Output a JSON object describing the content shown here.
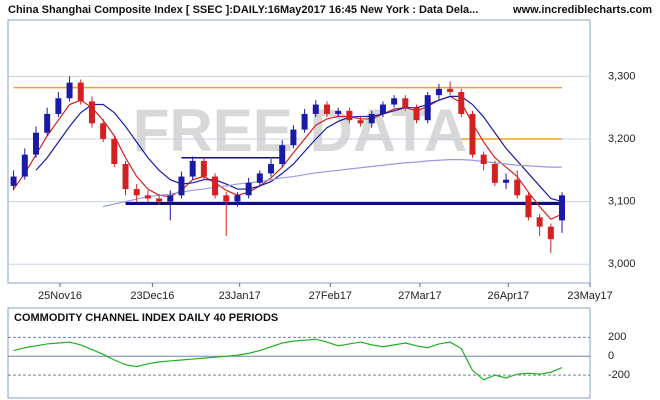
{
  "chart_data": [
    {
      "type": "candlestick",
      "title": "China Shanghai Composite Index [ SSEC ]:DAILY:16May2017 16:45 New York : Data Dela...",
      "source": "www.incrediblecharts.com",
      "watermark": "FREE DATA",
      "xlim": [
        -0.5,
        51.5
      ],
      "xticks": [
        {
          "value": 4.15,
          "label": "25Nov16"
        },
        {
          "value": 12.4,
          "label": "23Dec16"
        },
        {
          "value": 20.2,
          "label": "23Jan17"
        },
        {
          "value": 28.3,
          "label": "27Feb17"
        },
        {
          "value": 36.3,
          "label": "27Mar17"
        },
        {
          "value": 44.2,
          "label": "26Apr17"
        },
        {
          "value": 51.5,
          "label": "23May17"
        }
      ],
      "ylim": [
        2970,
        3390
      ],
      "yticks": [
        {
          "value": 3000,
          "label": "3,000"
        },
        {
          "value": 3100,
          "label": "3,100"
        },
        {
          "value": 3200,
          "label": "3,200"
        },
        {
          "value": 3300,
          "label": "3,300"
        }
      ],
      "open": [
        3125,
        3140,
        3175,
        3210,
        3240,
        3265,
        3290,
        3260,
        3225,
        3200,
        3160,
        3120,
        3110,
        3105,
        3100,
        3110,
        3140,
        3165,
        3140,
        3110,
        3100,
        3110,
        3130,
        3145,
        3160,
        3190,
        3215,
        3240,
        3255,
        3240,
        3245,
        3230,
        3225,
        3240,
        3255,
        3265,
        3250,
        3230,
        3270,
        3280,
        3275,
        3240,
        3175,
        3160,
        3130,
        3135,
        3110,
        3075,
        3060,
        3070
      ],
      "high": [
        3150,
        3185,
        3220,
        3250,
        3275,
        3300,
        3295,
        3268,
        3232,
        3205,
        3165,
        3128,
        3118,
        3112,
        3118,
        3148,
        3172,
        3170,
        3145,
        3115,
        3115,
        3138,
        3150,
        3168,
        3198,
        3222,
        3248,
        3262,
        3260,
        3250,
        3250,
        3236,
        3245,
        3260,
        3270,
        3270,
        3255,
        3275,
        3288,
        3292,
        3280,
        3245,
        3180,
        3165,
        3145,
        3150,
        3115,
        3080,
        3065,
        3115
      ],
      "low": [
        3118,
        3135,
        3170,
        3205,
        3235,
        3260,
        3255,
        3218,
        3195,
        3155,
        3110,
        3100,
        3100,
        3095,
        3070,
        3105,
        3135,
        3135,
        3105,
        3045,
        3092,
        3105,
        3125,
        3140,
        3155,
        3185,
        3210,
        3235,
        3235,
        3235,
        3225,
        3220,
        3218,
        3235,
        3250,
        3245,
        3225,
        3225,
        3262,
        3270,
        3235,
        3170,
        3150,
        3125,
        3120,
        3105,
        3070,
        3045,
        3018,
        3050
      ],
      "close": [
        3140,
        3175,
        3210,
        3240,
        3265,
        3290,
        3260,
        3225,
        3200,
        3160,
        3120,
        3110,
        3105,
        3100,
        3110,
        3140,
        3165,
        3140,
        3110,
        3100,
        3110,
        3130,
        3145,
        3160,
        3190,
        3215,
        3240,
        3255,
        3240,
        3245,
        3230,
        3225,
        3240,
        3255,
        3265,
        3250,
        3230,
        3270,
        3280,
        3275,
        3240,
        3175,
        3160,
        3130,
        3135,
        3110,
        3075,
        3060,
        3040,
        3110
      ],
      "up_color": "#1a1aa6",
      "down_color": "#d42020",
      "series": [
        {
          "color": "#d42020",
          "values": [
            3120,
            3145,
            3175,
            3205,
            3230,
            3255,
            3262,
            3250,
            3230,
            3205,
            3170,
            3140,
            3120,
            3110,
            3108,
            3118,
            3135,
            3140,
            3130,
            3118,
            3110,
            3115,
            3125,
            3138,
            3155,
            3178,
            3200,
            3222,
            3232,
            3236,
            3236,
            3232,
            3232,
            3240,
            3248,
            3250,
            3245,
            3252,
            3262,
            3268,
            3258,
            3225,
            3195,
            3170,
            3155,
            3140,
            3115,
            3092,
            3072,
            3080
          ]
        },
        {
          "color": "#1a1aa6",
          "values": [
            null,
            null,
            3150,
            3170,
            3195,
            3220,
            3242,
            3255,
            3255,
            3242,
            3220,
            3195,
            3170,
            3150,
            3135,
            3128,
            3130,
            3135,
            3135,
            3128,
            3120,
            3120,
            3125,
            3132,
            3145,
            3160,
            3180,
            3200,
            3218,
            3228,
            3235,
            3236,
            3236,
            3240,
            3245,
            3250,
            3250,
            3255,
            3262,
            3268,
            3268,
            3255,
            3235,
            3210,
            3185,
            3165,
            3145,
            3125,
            3105,
            3100
          ]
        },
        {
          "color": "#9a9ae0",
          "values": [
            null,
            null,
            null,
            null,
            null,
            null,
            null,
            null,
            3092,
            3096,
            3100,
            3104,
            3108,
            3110,
            3112,
            3115,
            3118,
            3120,
            3123,
            3125,
            3128,
            3130,
            3132,
            3135,
            3138,
            3140,
            3143,
            3146,
            3148,
            3150,
            3152,
            3154,
            3156,
            3158,
            3160,
            3162,
            3163,
            3165,
            3166,
            3167,
            3167,
            3166,
            3164,
            3162,
            3160,
            3158,
            3157,
            3156,
            3155,
            3155
          ]
        }
      ],
      "lines": [
        {
          "color": "#f0a020",
          "value": 3282,
          "from": 0,
          "to": 49
        },
        {
          "color": "#f0a020",
          "value": 3200,
          "from": 40,
          "to": 49
        },
        {
          "color": "#101070",
          "value": 3097,
          "from": 10,
          "to": 49
        },
        {
          "color": "#101070",
          "value": 3170,
          "from": 15,
          "to": 24
        }
      ]
    },
    {
      "type": "line",
      "title": "COMMODITY CHANNEL INDEX DAILY 40 PERIODS",
      "xlim": [
        -0.5,
        51.5
      ],
      "ylim": [
        -400,
        320
      ],
      "yticks": [
        200,
        0,
        -200
      ],
      "series": [
        {
          "color": "#20b020",
          "values": [
            60,
            90,
            110,
            130,
            140,
            150,
            120,
            70,
            20,
            -40,
            -90,
            -110,
            -80,
            -60,
            -50,
            -40,
            -30,
            -20,
            -10,
            0,
            10,
            30,
            60,
            100,
            140,
            160,
            170,
            180,
            150,
            110,
            130,
            150,
            120,
            100,
            120,
            140,
            110,
            90,
            130,
            150,
            80,
            -150,
            -250,
            -200,
            -230,
            -190,
            -180,
            -190,
            -170,
            -120
          ]
        }
      ]
    }
  ]
}
